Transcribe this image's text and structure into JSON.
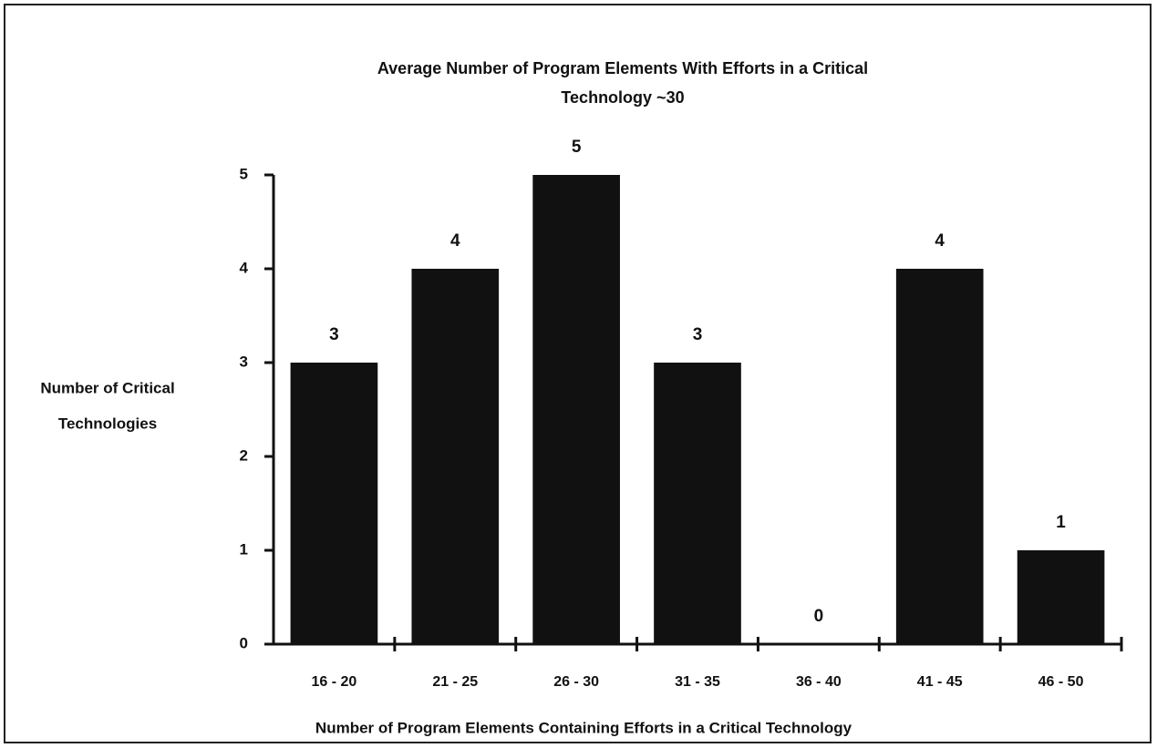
{
  "chart_data": {
    "type": "bar",
    "title": [
      "Average Number of Program Elements With Efforts in a Critical",
      "Technology ~30"
    ],
    "y_label": [
      "Number of Critical",
      "Technologies"
    ],
    "x_label": "Number of Program Elements Containing Efforts in a Critical Technology",
    "categories": [
      "16 - 20",
      "21 - 25",
      "26 - 30",
      "31 - 35",
      "36 - 40",
      "41 - 45",
      "46 - 50"
    ],
    "values": [
      3,
      4,
      5,
      3,
      0,
      4,
      1
    ],
    "color": "#111111",
    "ylim": [
      0,
      5
    ],
    "yticks": [
      0,
      1,
      2,
      3,
      4,
      5
    ],
    "grid": false
  }
}
